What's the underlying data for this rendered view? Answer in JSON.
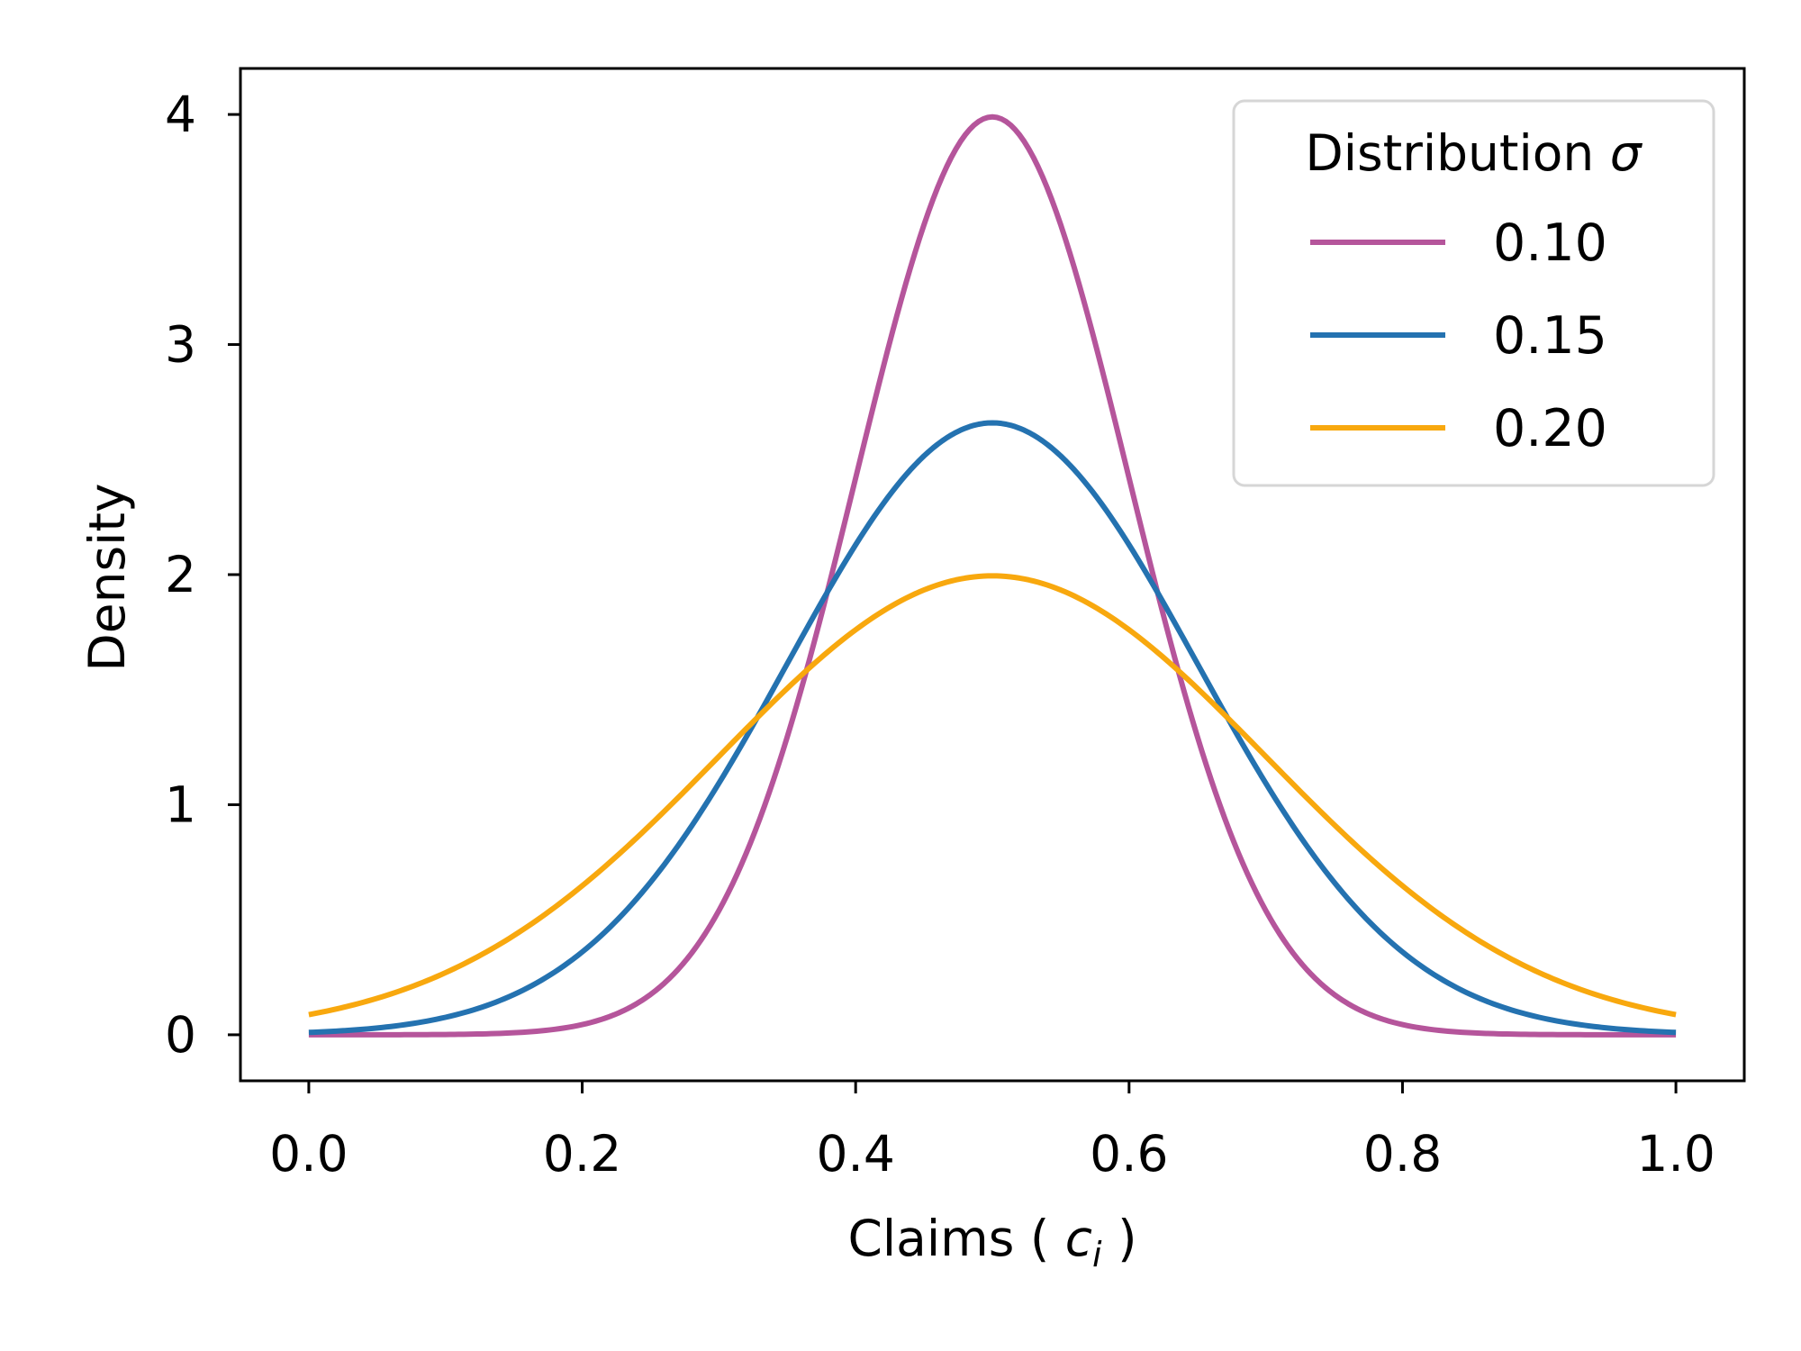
{
  "chart_data": {
    "type": "line",
    "xlabel": "Claims ( ",
    "xlabel_var": "c",
    "xlabel_sub": "i",
    "xlabel_close": " )",
    "ylabel": "Density",
    "xlim": [
      -0.05,
      1.05
    ],
    "ylim": [
      -0.2,
      4.2
    ],
    "xticks": [
      0.0,
      0.2,
      0.4,
      0.6,
      0.8,
      1.0
    ],
    "xtick_labels": [
      "0.0",
      "0.2",
      "0.4",
      "0.6",
      "0.8",
      "1.0"
    ],
    "yticks": [
      0,
      1,
      2,
      3,
      4
    ],
    "ytick_labels": [
      "0",
      "1",
      "2",
      "3",
      "4"
    ],
    "grid": false,
    "legend": {
      "title": "Distribution ",
      "title_symbol": "σ",
      "placement": "top-right"
    },
    "series": [
      {
        "name": "0.10",
        "mean": 0.5,
        "sigma": 0.1,
        "color": "#b5559b"
      },
      {
        "name": "0.15",
        "mean": 0.5,
        "sigma": 0.15,
        "color": "#2472b0"
      },
      {
        "name": "0.20",
        "mean": 0.5,
        "sigma": 0.2,
        "color": "#f8a80e"
      }
    ]
  }
}
